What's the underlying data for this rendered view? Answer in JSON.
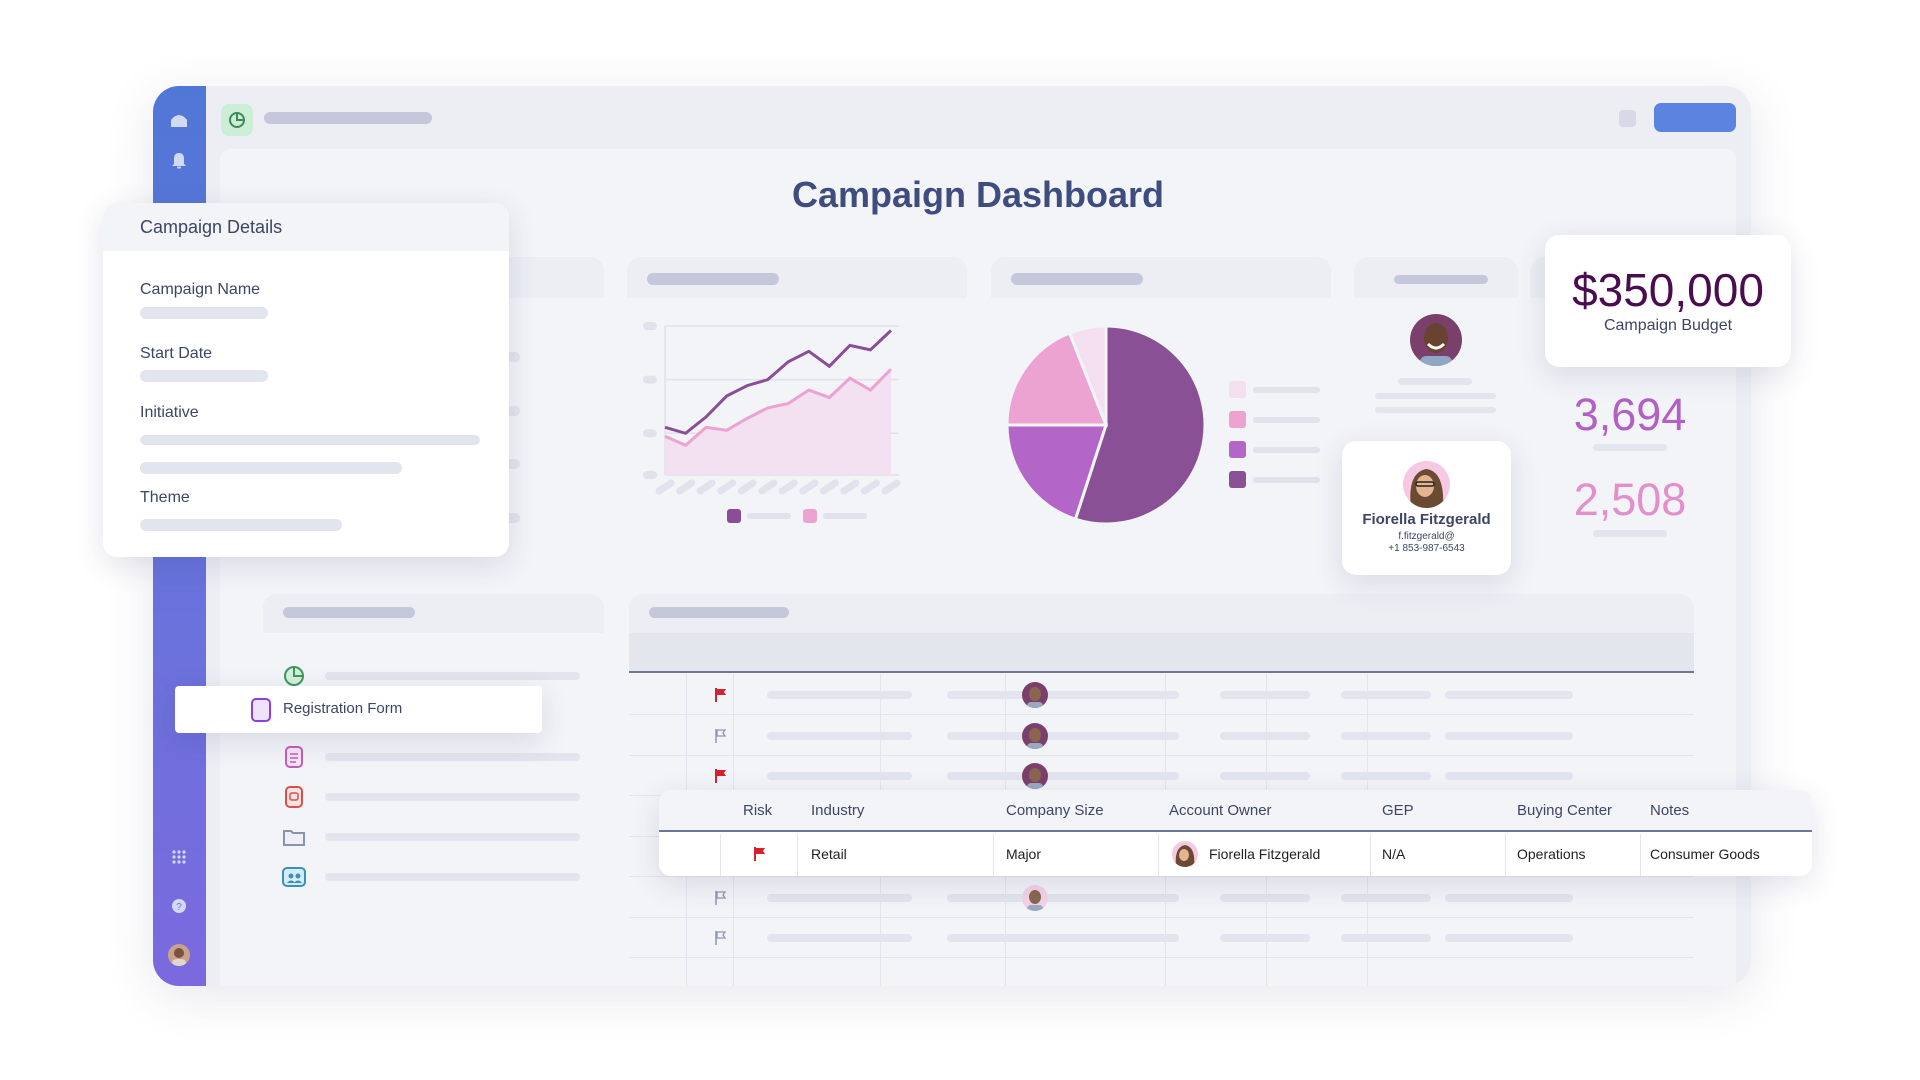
{
  "dashboard": {
    "title": "Campaign Dashboard"
  },
  "campaign_details": {
    "title": "Campaign Details",
    "fields": [
      {
        "label": "Campaign Name"
      },
      {
        "label": "Start Date"
      },
      {
        "label": "Initiative"
      },
      {
        "label": "Theme"
      }
    ]
  },
  "budget": {
    "value": "$350,000",
    "label": "Campaign Budget",
    "color": "#4a0d4f"
  },
  "stats": [
    {
      "value": "3,694",
      "color": "#b25fc6"
    },
    {
      "value": "2,508",
      "color": "#e38fcb"
    }
  ],
  "contact": {
    "name": "Fiorella Fitzgerald",
    "email": "f.fitzgerald@",
    "phone": "+1 853-987-6543"
  },
  "list": {
    "highlighted": "Registration Form",
    "icons": [
      "pie-chart-icon",
      "form-icon",
      "document-icon",
      "record-icon",
      "folder-icon",
      "team-icon"
    ]
  },
  "table": {
    "columns": [
      "Risk",
      "Industry",
      "Company Size",
      "Account Owner",
      "GEP",
      "Buying Center",
      "Notes"
    ],
    "row": {
      "risk": "flagged",
      "industry": "Retail",
      "company_size": "Major",
      "account_owner": "Fiorella Fitzgerald",
      "gep": "N/A",
      "buying_center": "Operations",
      "notes": "Consumer Goods"
    },
    "background_flags": [
      "red",
      "gray",
      "red",
      "hidden",
      "gray",
      "gray",
      "gray"
    ]
  },
  "colors": {
    "sidebar": "#5177d6",
    "accent_button": "#5a84e0",
    "dark_purple": "#8a5096",
    "purple": "#b466c8",
    "pink": "#eca3d2",
    "light_pink": "#f4dff0",
    "flag_red": "#d6212f"
  },
  "chart_data": [
    {
      "type": "line",
      "series": [
        {
          "color": "#8a4e98",
          "values": [
            32,
            28,
            39,
            53,
            60,
            64,
            76,
            83,
            73,
            87,
            84,
            97
          ]
        },
        {
          "color": "#eca3d2",
          "values": [
            26,
            20,
            32,
            30,
            38,
            45,
            48,
            57,
            52,
            65,
            57,
            71
          ],
          "fill": "#f3e0f0"
        }
      ],
      "ylim": [
        0,
        100
      ],
      "grid": true
    },
    {
      "type": "pie",
      "values": [
        55,
        20,
        19,
        6
      ],
      "colors": [
        "#8a5096",
        "#b466c8",
        "#eca3d2",
        "#f4dff0"
      ]
    }
  ]
}
